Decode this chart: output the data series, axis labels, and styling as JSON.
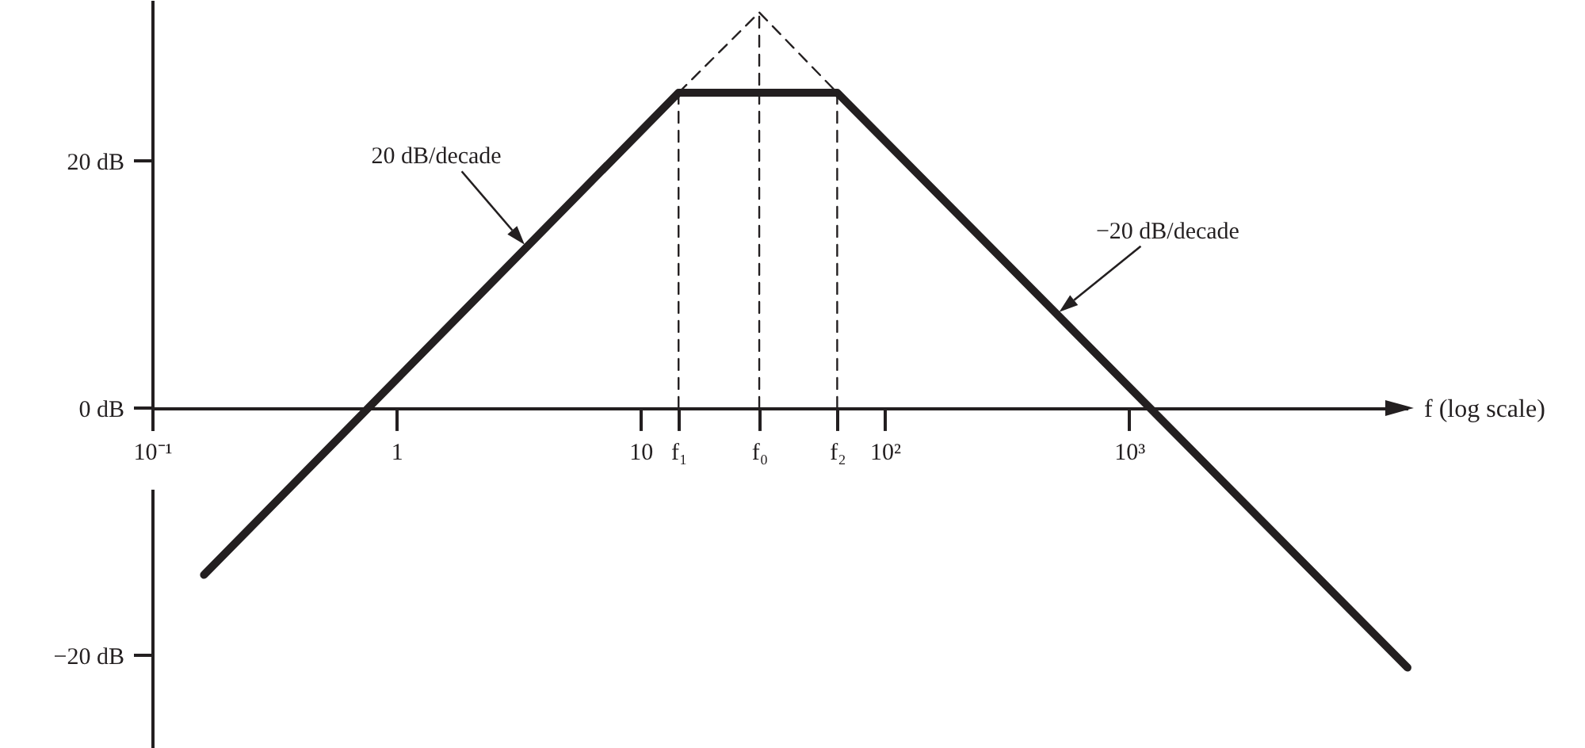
{
  "chart_data": {
    "type": "line",
    "xlabel": "f (log scale)",
    "log": "x",
    "xlim": [
      0.1,
      13800
    ],
    "ylim": [
      -27.5,
      33
    ],
    "xticks": [
      {
        "value": 0.1,
        "label": "10⁻¹"
      },
      1,
      10,
      {
        "value": 14.3,
        "label": "f₁"
      },
      {
        "value": 30.6,
        "label": "f₀"
      },
      {
        "value": 63.8,
        "label": "f₂"
      },
      {
        "value": 100,
        "label": "10²"
      },
      {
        "value": 1000,
        "label": "10³"
      }
    ],
    "yticks": [
      {
        "value": -20,
        "label": "−20 dB"
      },
      {
        "value": 0,
        "label": "0 dB"
      },
      {
        "value": 20,
        "label": "20 dB"
      }
    ],
    "grid": false,
    "marker": "none",
    "series": [
      {
        "color": "#231f20",
        "line_style": "solid",
        "x": [
          0.163,
          14.3,
          63.8,
          13800
        ],
        "values": [
          -13.5,
          25.5,
          25.5,
          -21
        ]
      },
      {
        "color": "#231f20",
        "line_style": "dashed",
        "x": [
          14.3,
          30.6,
          63.8
        ],
        "values": [
          25.5,
          32,
          25.5
        ]
      },
      {
        "color": "#231f20",
        "line_style": "dashed",
        "x": [
          14.3,
          14.3
        ],
        "values": [
          0,
          25.5
        ]
      },
      {
        "color": "#231f20",
        "line_style": "dashed",
        "x": [
          30.6,
          30.6
        ],
        "values": [
          0,
          32
        ]
      },
      {
        "color": "#231f20",
        "line_style": "dashed",
        "x": [
          63.8,
          63.8
        ],
        "values": [
          0,
          25.5
        ]
      }
    ],
    "annotations": [
      "20 dB/decade",
      "−20 dB/decade"
    ]
  }
}
